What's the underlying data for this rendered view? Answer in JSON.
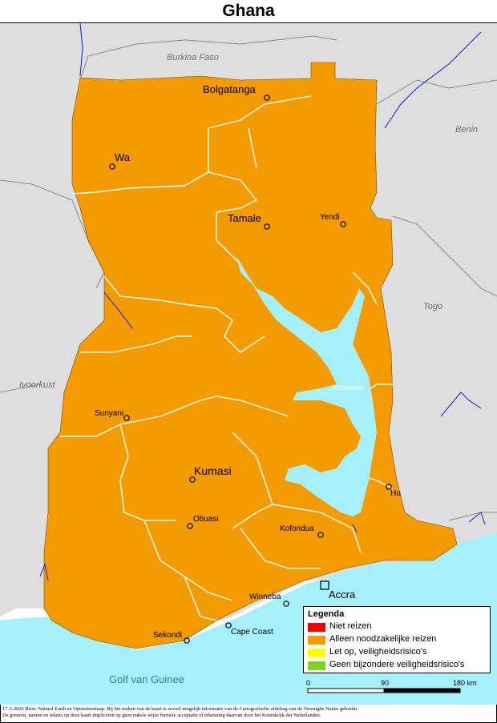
{
  "title": "Ghana",
  "colors": {
    "niet_reizen": "#ee0000",
    "alleen_noodzakelijk": "#f39b00",
    "let_op": "#ffff00",
    "geen_bijzondere": "#7ed321",
    "neighbour_land": "#dedede",
    "water": "#a6f0fb",
    "river": "#1a2fd6",
    "border": "#8a8a8a"
  },
  "countries": {
    "burkina_faso": "Burkina Faso",
    "benin": "Benin",
    "togo": "Togo",
    "ivoorkust": "Ivoorkust"
  },
  "sea": "Golf van Guinee",
  "lake": "Voltameer",
  "cities": {
    "bolgatanga": "Bolgatanga",
    "wa": "Wa",
    "tamale": "Tamale",
    "yendi": "Yendi",
    "sunyani": "Sunyani",
    "kumasi": "Kumasi",
    "obuasi": "Obuasi",
    "koforidua": "Koforidua",
    "ho": "Ho",
    "winneba": "Winneba",
    "accra": "Accra",
    "cape_coast": "Cape Coast",
    "sekondi": "Sekondi"
  },
  "legend": {
    "title": "Legenda",
    "items": [
      "Niet reizen",
      "Alleen noodzakelijke reizen",
      "Let op, veiligheidsrisico's",
      "Geen bijzondere veiligheidsrisico's"
    ]
  },
  "scale": {
    "start": "0",
    "mid": "90",
    "end": "180 km"
  },
  "footer": {
    "line1": "17-3-2020 Bron: Natural Earth en Openstreetmap. Bij het maken van de kaart is zoveel mogelijk informatie van de Cartografische afdeling van de Verenigde Naties gebruikt.",
    "line2": "De grenzen, namen en tekens op deze kaart impliceren op geen enkele wijze formele acceptatie of erkenning daarvan door het Koninkrijk der Nederlanden."
  }
}
